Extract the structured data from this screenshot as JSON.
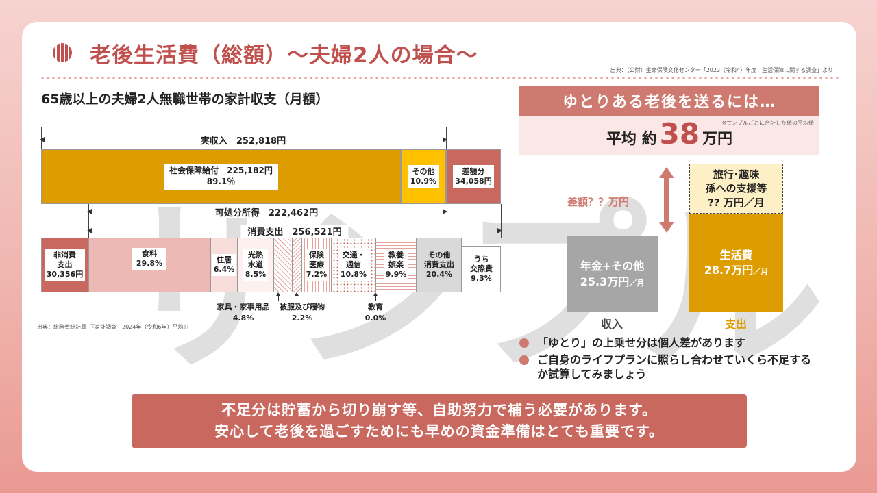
{
  "title": "老後生活費（総額）～夫婦2人の場合～",
  "source_top": "出典：（公財）生命保険文化センター「2022（令和4）年度　生活保障に関する調査」より",
  "subtitle": "65歳以上の夫婦2人無職世帯の家計収支（月額）",
  "watermark": "サンプル",
  "left_chart": {
    "actual_income_label": "実収入　252,818円",
    "social_security": "社会保障給付　225,182円",
    "social_security_pct": "89.1％",
    "other_income": "その他",
    "other_income_pct": "10.9%",
    "deficit": "差額分",
    "deficit_value": "34,058円",
    "disposable_income_label": "可処分所得　222,462円",
    "consumption_label": "消費支出　256,521円",
    "categories": [
      {
        "name": "非消費\n支出",
        "value": "30,356円",
        "pct": 12.0
      },
      {
        "name": "食料",
        "value": "29.8%",
        "pct": 29.8
      },
      {
        "name": "住居",
        "value": "6.4%",
        "pct": 6.4
      },
      {
        "name": "光熱\n水道",
        "value": "8.5%",
        "pct": 8.5
      },
      {
        "name": "家具・家事用品",
        "value": "4.8%",
        "pct": 4.8
      },
      {
        "name": "被服及び履物",
        "value": "2.2%",
        "pct": 2.2
      },
      {
        "name": "保険\n医療",
        "value": "7.2%",
        "pct": 7.2
      },
      {
        "name": "交通・\n通信",
        "value": "10.8%",
        "pct": 10.8
      },
      {
        "name": "教育",
        "value": "0.0%",
        "pct": 0.0
      },
      {
        "name": "教養\n娯楽",
        "value": "9.9%",
        "pct": 9.9
      },
      {
        "name": "その他\n消費支出",
        "value": "20.4%",
        "pct": 20.4
      },
      {
        "name": "うち\n交際費",
        "value": "9.3%",
        "pct": 9.3
      }
    ],
    "furniture_label": "家具・家事用品",
    "furniture_pct": "4.8%",
    "clothing_label": "被服及び履物",
    "clothing_pct": "2.2%",
    "education_label": "教育",
    "education_pct": "0.0%",
    "source": "出典：総務省統計局「『家計調査　2024年（令和6年）平均』」"
  },
  "yutori": {
    "head": "ゆとりある老後を送るには…",
    "note": "※サンプルごとに合計した値の平均値",
    "prefix": "平均 約",
    "number": "38",
    "unit": "万円"
  },
  "right_chart": {
    "gap_label": "差額？？万円",
    "income_line1": "年金+その他",
    "income_line2": "25.3万円",
    "income_unit": "／月",
    "expense_line1": "生活費",
    "expense_line2": "28.7万円",
    "expense_unit": "／月",
    "travel_line1": "旅行･趣味",
    "travel_line2": "孫への支援等",
    "travel_line3": "?? 万円／月",
    "income_axis": "収入",
    "expense_axis": "支出",
    "colors": {
      "income": "#a6a6a6",
      "expense": "#dd9c00",
      "accent": "#c0504d"
    }
  },
  "bullets": [
    "「ゆとり」の上乗せ分は個人差があります",
    "ご自身のライフプランに照らし合わせていくら不足するか試算してみましょう"
  ],
  "banner": {
    "line1": "不足分は貯蓄から切り崩す等、自助努力で補う必要があります。",
    "line2": "安心して老後を過ごすためにも早めの資金準備はとても重要です。"
  }
}
